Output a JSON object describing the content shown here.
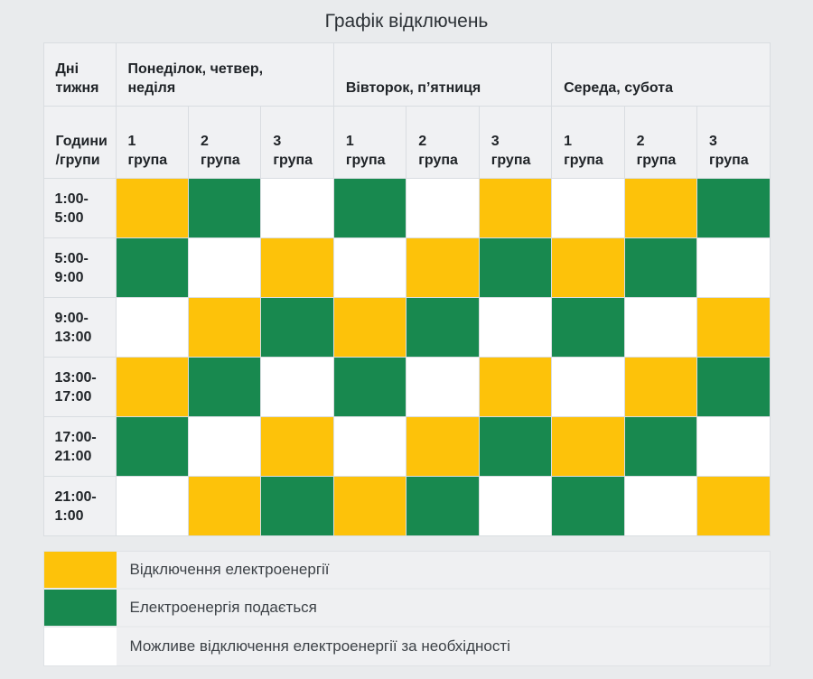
{
  "title": "Графік відключень",
  "chart_data": {
    "type": "table",
    "title": "Графік відключень",
    "corner_header": "Дні тижня",
    "hours_header": "Години/групи",
    "day_groups": [
      {
        "label": "Понеділок, четвер, неділя",
        "columns": [
          "1 група",
          "2 група",
          "3 група"
        ]
      },
      {
        "label": "Вівторок, п’ятниця",
        "columns": [
          "1 група",
          "2 група",
          "3 група"
        ]
      },
      {
        "label": "Середа, субота",
        "columns": [
          "1 група",
          "2 група",
          "3 група"
        ]
      }
    ],
    "rows": [
      {
        "time": "1:00-5:00",
        "cells": [
          "off",
          "on",
          "maybe",
          "on",
          "maybe",
          "off",
          "maybe",
          "off",
          "on"
        ]
      },
      {
        "time": "5:00-9:00",
        "cells": [
          "on",
          "maybe",
          "off",
          "maybe",
          "off",
          "on",
          "off",
          "on",
          "maybe"
        ]
      },
      {
        "time": "9:00-13:00",
        "cells": [
          "maybe",
          "off",
          "on",
          "off",
          "on",
          "maybe",
          "on",
          "maybe",
          "off"
        ]
      },
      {
        "time": "13:00-17:00",
        "cells": [
          "off",
          "on",
          "maybe",
          "on",
          "maybe",
          "off",
          "maybe",
          "off",
          "on"
        ]
      },
      {
        "time": "17:00-21:00",
        "cells": [
          "on",
          "maybe",
          "off",
          "maybe",
          "off",
          "on",
          "off",
          "on",
          "maybe"
        ]
      },
      {
        "time": "21:00-1:00",
        "cells": [
          "maybe",
          "off",
          "on",
          "off",
          "on",
          "maybe",
          "on",
          "maybe",
          "off"
        ]
      }
    ],
    "colors": {
      "off": "#fdc20a",
      "on": "#18894f",
      "maybe": "#ffffff"
    },
    "legend_position": "bottom",
    "legend": [
      {
        "value": "off",
        "color": "#fdc20a",
        "label": "Відключення електроенергії"
      },
      {
        "value": "on",
        "color": "#18894f",
        "label": "Електроенергія подається"
      },
      {
        "value": "maybe",
        "color": "#ffffff",
        "label": "Можливе відключення електроенергії за необхідності"
      }
    ]
  }
}
